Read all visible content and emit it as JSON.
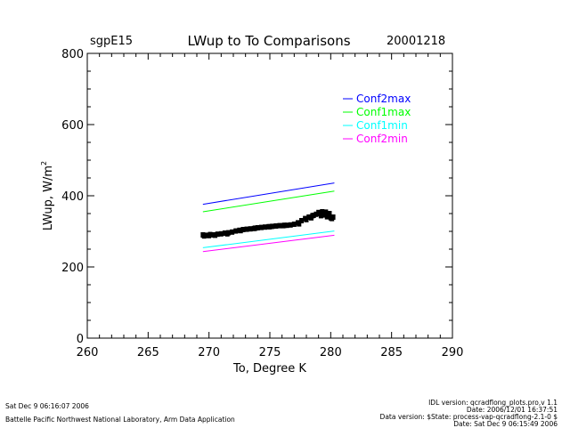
{
  "header": {
    "site": "sgpE15",
    "title": "LWup to To Comparisons",
    "date": "20001218"
  },
  "footer": {
    "left_line1": "Sat Dec  9 06:16:07 2006",
    "left_line2": "Battelle Pacific Northwest National Laboratory, Arm Data Application",
    "right_line1": "IDL version: qcradflong_plots.pro,v 1.1",
    "right_line2": "Date: 2006/12/01 16:37:51",
    "right_line3": "Data version: $State: process-vap-qcradflong-2.1-0 $",
    "right_line4": "Date: Sat Dec  9 06:15:49 2006"
  },
  "chart_data": {
    "type": "scatter",
    "title": "LWup to To Comparisons",
    "xlabel": "To, Degree K",
    "ylabel": "LWup, W/m",
    "ylabel_superscript": "2",
    "xlim": [
      260,
      290
    ],
    "ylim": [
      0,
      800
    ],
    "xticks": [
      260,
      265,
      270,
      275,
      280,
      285,
      290
    ],
    "yticks": [
      0,
      200,
      400,
      600,
      800
    ],
    "grid": false,
    "legend_position": "top-right",
    "series": [
      {
        "name": "Conf2max",
        "kind": "line",
        "color": "#0000ff",
        "x": [
          269.5,
          280.3
        ],
        "y": [
          376,
          436
        ]
      },
      {
        "name": "Conf1max",
        "kind": "line",
        "color": "#00ff00",
        "x": [
          269.5,
          280.3
        ],
        "y": [
          355,
          413
        ]
      },
      {
        "name": "Conf1min",
        "kind": "line",
        "color": "#00ffff",
        "x": [
          269.5,
          280.3
        ],
        "y": [
          254,
          301
        ]
      },
      {
        "name": "Conf2min",
        "kind": "line",
        "color": "#ff00ff",
        "x": [
          269.5,
          280.3
        ],
        "y": [
          243,
          289
        ]
      },
      {
        "name": "",
        "kind": "points",
        "color": "#000000",
        "x": [
          269.5,
          269.8,
          270.1,
          270.4,
          270.7,
          271.0,
          271.3,
          271.6,
          271.9,
          272.2,
          272.5,
          272.8,
          273.1,
          273.4,
          273.7,
          274.0,
          274.3,
          274.6,
          274.9,
          275.2,
          275.5,
          275.8,
          276.1,
          276.4,
          276.7,
          277.0,
          277.3,
          277.6,
          277.9,
          278.2,
          278.5,
          278.8,
          279.1,
          279.4,
          279.7,
          280.0,
          280.2,
          269.6,
          270.0,
          270.5,
          271.5,
          272.6,
          273.8,
          275.0,
          276.2,
          277.4,
          278.0,
          278.6,
          279.0,
          279.3,
          279.6,
          279.9,
          278.4,
          279.2,
          280.1
        ],
        "y": [
          290,
          289,
          291,
          290,
          292,
          293,
          295,
          296,
          298,
          301,
          303,
          305,
          306,
          307,
          308,
          310,
          311,
          312,
          313,
          314,
          315,
          316,
          316,
          317,
          318,
          320,
          324,
          330,
          336,
          340,
          344,
          348,
          350,
          346,
          341,
          338,
          340,
          287,
          288,
          289,
          293,
          302,
          309,
          313,
          317,
          321,
          333,
          345,
          353,
          355,
          354,
          350,
          338,
          344,
          336
        ]
      }
    ]
  }
}
